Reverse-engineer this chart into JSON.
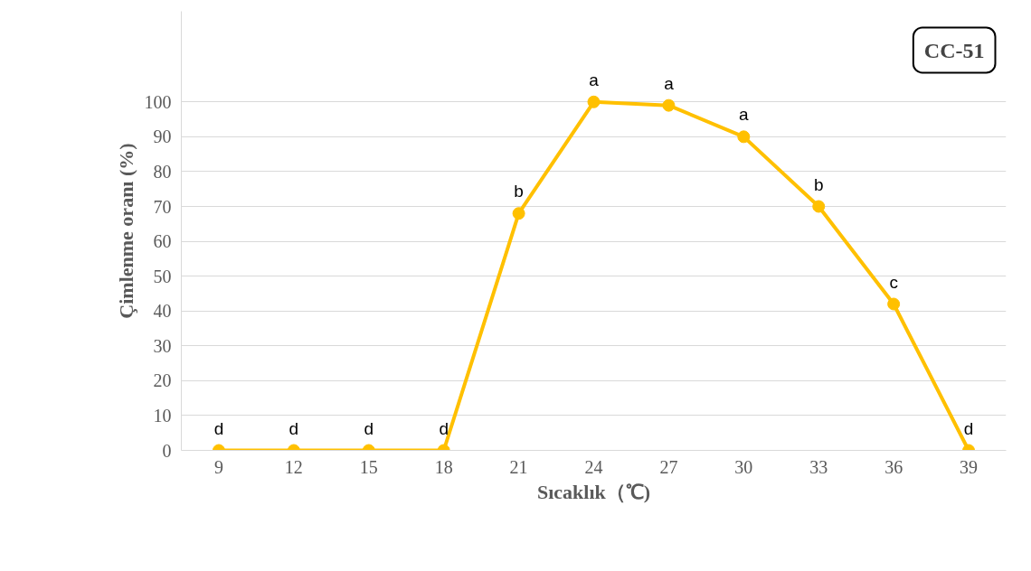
{
  "chart_data": {
    "type": "line",
    "xlabel": "Sıcaklık（℃)",
    "ylabel": "Çimlenme oranı (%)",
    "categories": [
      "9",
      "12",
      "15",
      "18",
      "21",
      "24",
      "27",
      "30",
      "33",
      "36",
      "39"
    ],
    "series": [
      {
        "color": "#ffc000",
        "values": [
          0,
          0,
          0,
          0,
          68,
          100,
          99,
          90,
          70,
          42,
          0
        ]
      }
    ],
    "ylim": [
      0,
      126
    ],
    "yticks": [
      0,
      10,
      20,
      30,
      40,
      50,
      60,
      70,
      80,
      90,
      100
    ],
    "grid": "y",
    "marker": "circle",
    "line_style": "solid",
    "annotations": [
      "CC-51",
      {
        "text": "d",
        "x": "9",
        "y": 0
      },
      {
        "text": "d",
        "x": "12",
        "y": 0
      },
      {
        "text": "d",
        "x": "15",
        "y": 0
      },
      {
        "text": "d",
        "x": "18",
        "y": 0
      },
      {
        "text": "b",
        "x": "21",
        "y": 68
      },
      {
        "text": "a",
        "x": "24",
        "y": 100
      },
      {
        "text": "a",
        "x": "27",
        "y": 99
      },
      {
        "text": "a",
        "x": "30",
        "y": 90
      },
      {
        "text": "b",
        "x": "33",
        "y": 70
      },
      {
        "text": "c",
        "x": "36",
        "y": 42
      },
      {
        "text": "d",
        "x": "39",
        "y": 0
      }
    ]
  }
}
